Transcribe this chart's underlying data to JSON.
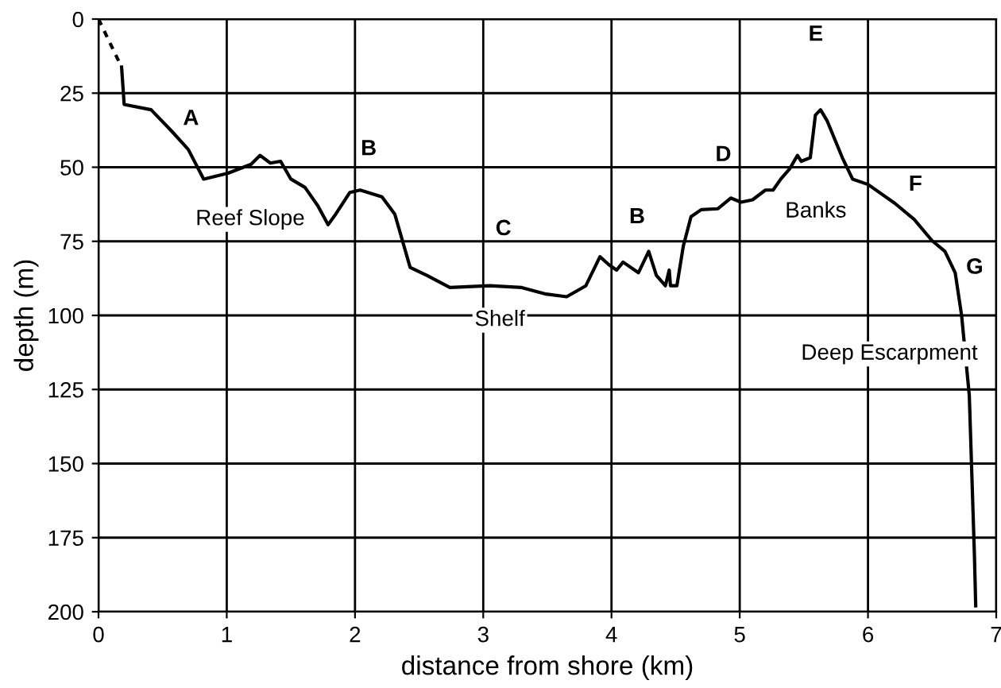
{
  "chart_data": {
    "type": "line",
    "xlabel": "distance from shore (km)",
    "ylabel": "depth (m)",
    "xlim": [
      0,
      7
    ],
    "xticks": [
      0,
      1,
      2,
      3,
      4,
      5,
      6,
      7
    ],
    "ylim": [
      200,
      0
    ],
    "yticks": [
      0,
      25,
      50,
      75,
      100,
      125,
      150,
      175,
      200
    ],
    "grid": true,
    "marker": "none",
    "series": [
      {
        "color": "#000000",
        "line_style": "dashed",
        "x": [
          0,
          0.18
        ],
        "values": [
          0,
          16.2
        ]
      },
      {
        "color": "#000000",
        "line_style": "solid",
        "x": [
          0.18,
          0.2,
          0.41,
          0.57,
          0.7,
          0.82,
          1.01,
          1.19,
          1.26,
          1.34,
          1.42,
          1.5,
          1.61,
          1.71,
          1.79,
          1.85,
          1.96,
          2.04,
          2.21,
          2.31,
          2.37,
          2.43,
          2.56,
          2.74,
          3.05,
          3.3,
          3.49,
          3.65,
          3.8,
          3.91,
          3.98,
          4.04,
          4.09,
          4.21,
          4.29,
          4.35,
          4.42,
          4.45,
          4.46,
          4.51,
          4.56,
          4.62,
          4.7,
          4.83,
          4.93,
          5.01,
          5.1,
          5.2,
          5.26,
          5.32,
          5.39,
          5.45,
          5.48,
          5.55,
          5.59,
          5.63,
          5.68,
          5.8,
          5.88,
          6.0,
          6.21,
          6.36,
          6.5,
          6.6,
          6.68,
          6.73,
          6.79,
          6.83,
          6.84
        ],
        "values": [
          16.2,
          28.8,
          30.6,
          37.8,
          44,
          54,
          52,
          49,
          46,
          48.6,
          48,
          54,
          56.8,
          63,
          69.4,
          65.8,
          58.5,
          57.7,
          60,
          65.8,
          74.8,
          83.8,
          86.5,
          90.6,
          90,
          90.6,
          92.8,
          93.7,
          90,
          80.2,
          82.9,
          84.7,
          82,
          85.6,
          78.4,
          86.5,
          90,
          84.7,
          90,
          90,
          76.6,
          66.7,
          64.3,
          64,
          60.4,
          61.8,
          61,
          57.7,
          57.7,
          54,
          50.5,
          46,
          48,
          46.8,
          32.4,
          30.6,
          34.2,
          46.8,
          54,
          55.8,
          62.2,
          67.6,
          74.8,
          78.4,
          85.6,
          100,
          127,
          181,
          198
        ]
      }
    ],
    "annotations": [
      "A",
      "B",
      "C",
      "B",
      "D",
      "E",
      "F",
      "G",
      "Reef Slope",
      "Shelf",
      "Banks",
      "Deep Escarpment"
    ]
  }
}
